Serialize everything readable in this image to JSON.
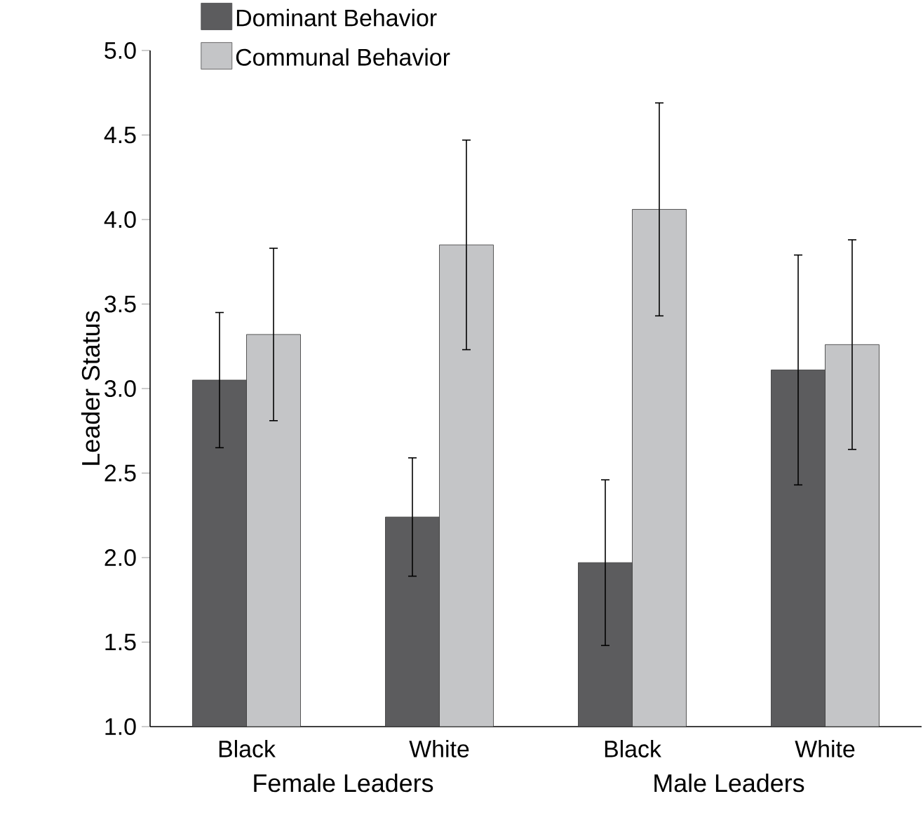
{
  "chart_data": {
    "type": "bar",
    "ylabel": "Leader Status",
    "categories": [
      "Black",
      "White",
      "Black",
      "White"
    ],
    "series": [
      {
        "name": "Dominant Behavior",
        "color": "#5c5c5e",
        "values": [
          3.05,
          2.24,
          1.97,
          3.11
        ],
        "errors": [
          0.4,
          0.35,
          0.49,
          0.68
        ]
      },
      {
        "name": "Communal Behavior",
        "color": "#c4c5c7",
        "values": [
          3.32,
          3.85,
          4.06,
          3.26
        ],
        "errors": [
          0.51,
          0.62,
          0.63,
          0.62
        ]
      }
    ],
    "annotations": [
      "Female Leaders",
      "Male Leaders"
    ],
    "ylim": [
      1.0,
      5.0
    ],
    "yticks": [
      {
        "value": 1,
        "label": "1.0"
      },
      {
        "value": 1.5,
        "label": "1.5"
      },
      {
        "value": 2,
        "label": "2.0"
      },
      {
        "value": 2.5,
        "label": "2.5"
      },
      {
        "value": 3,
        "label": "3.0"
      },
      {
        "value": 3.5,
        "label": "3.5"
      },
      {
        "value": 4,
        "label": "4.0"
      },
      {
        "value": 4.5,
        "label": "4.5"
      },
      {
        "value": 5,
        "label": "5.0"
      }
    ],
    "grid": false,
    "legend": "top left"
  }
}
